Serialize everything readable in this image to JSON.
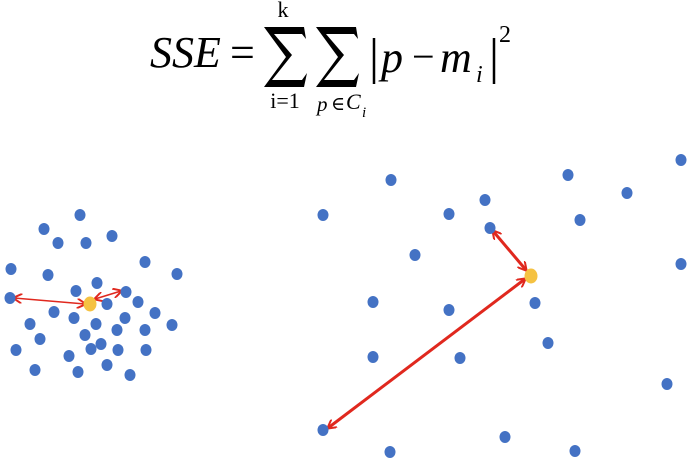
{
  "formula": {
    "lhs": "SSE",
    "equals": "=",
    "sum1_upper": "k",
    "sum1_lower": "i=1",
    "sum2_lower_p": "p",
    "sum2_lower_in": "∈",
    "sum2_lower_C": "C",
    "sum2_lower_i": "i",
    "abs_p": "p",
    "minus": "−",
    "abs_m": "m",
    "abs_m_sub": "i",
    "exponent": "2"
  },
  "colors": {
    "point": "#4472c4",
    "centroid": "#f5c242",
    "arrow": "#e0281e"
  },
  "clusters": [
    {
      "name": "tight-cluster",
      "points": [
        [
          80,
          215
        ],
        [
          44,
          229
        ],
        [
          58,
          243
        ],
        [
          86,
          243
        ],
        [
          112,
          236
        ],
        [
          145,
          262
        ],
        [
          177,
          274
        ],
        [
          11,
          269
        ],
        [
          48,
          275
        ],
        [
          10,
          298
        ],
        [
          76,
          291
        ],
        [
          97,
          283
        ],
        [
          126,
          292
        ],
        [
          107,
          304
        ],
        [
          138,
          302
        ],
        [
          54,
          312
        ],
        [
          74,
          318
        ],
        [
          96,
          324
        ],
        [
          125,
          318
        ],
        [
          155,
          313
        ],
        [
          172,
          325
        ],
        [
          30,
          324
        ],
        [
          85,
          335
        ],
        [
          117,
          330
        ],
        [
          145,
          330
        ],
        [
          40,
          339
        ],
        [
          101,
          344
        ],
        [
          118,
          350
        ],
        [
          146,
          350
        ],
        [
          16,
          350
        ],
        [
          69,
          356
        ],
        [
          91,
          349
        ],
        [
          35,
          370
        ],
        [
          78,
          372
        ],
        [
          107,
          365
        ],
        [
          130,
          375
        ]
      ],
      "centroid": [
        90,
        304
      ]
    },
    {
      "name": "loose-cluster",
      "points": [
        [
          391,
          180
        ],
        [
          568,
          175
        ],
        [
          681,
          160
        ],
        [
          627,
          193
        ],
        [
          323,
          215
        ],
        [
          449,
          214
        ],
        [
          485,
          200
        ],
        [
          580,
          220
        ],
        [
          490,
          228
        ],
        [
          415,
          255
        ],
        [
          681,
          264
        ],
        [
          373,
          302
        ],
        [
          449,
          310
        ],
        [
          535,
          303
        ],
        [
          373,
          357
        ],
        [
          460,
          358
        ],
        [
          548,
          343
        ],
        [
          667,
          384
        ],
        [
          323,
          430
        ],
        [
          390,
          452
        ],
        [
          505,
          437
        ],
        [
          575,
          451
        ]
      ],
      "centroid": [
        531,
        276
      ]
    }
  ]
}
